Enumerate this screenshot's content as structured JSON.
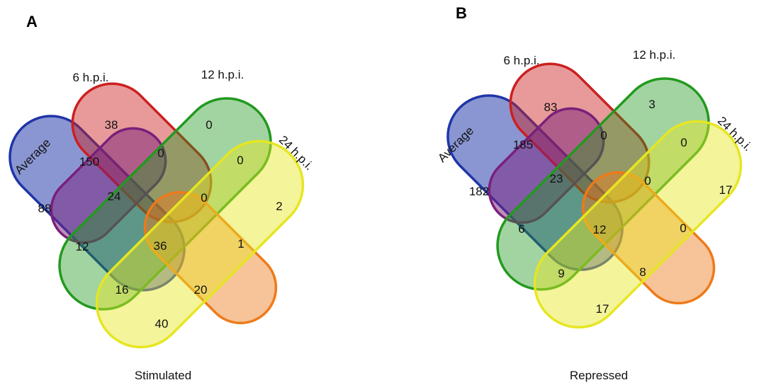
{
  "colors": {
    "average": "#1f35a8",
    "h6": "#cc1f1f",
    "h12": "#22991e",
    "h24": "#e6e622",
    "purple": "#7a1f7a",
    "orange": "#ee7a1a"
  },
  "panels": [
    {
      "letter": "A",
      "caption": "Stimulated",
      "set_labels": {
        "average": "Average",
        "h6": "6 h.p.i.",
        "h12": "12 h.p.i.",
        "h24": "24 h.p.i."
      },
      "counts": [
        "38",
        "0",
        "150",
        "0",
        "0",
        "88",
        "24",
        "0",
        "2",
        "12",
        "36",
        "1",
        "16",
        "20",
        "40"
      ]
    },
    {
      "letter": "B",
      "caption": "Repressed",
      "set_labels": {
        "average": "Average",
        "h6": "6 h.p.i.",
        "h12": "12 h.p.i.",
        "h24": "24 h.p.i."
      },
      "counts": [
        "83",
        "3",
        "185",
        "0",
        "0",
        "182",
        "23",
        "0",
        "17",
        "6",
        "12",
        "0",
        "9",
        "8",
        "17"
      ]
    }
  ]
}
